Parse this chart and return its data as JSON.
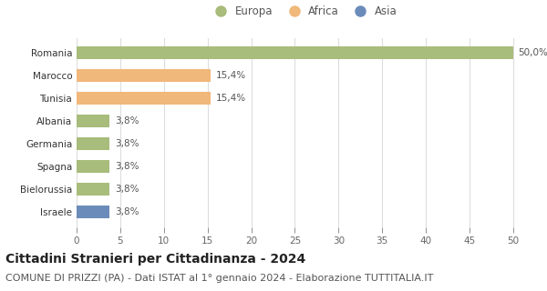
{
  "categories": [
    "Israele",
    "Bielorussia",
    "Spagna",
    "Germania",
    "Albania",
    "Tunisia",
    "Marocco",
    "Romania"
  ],
  "values": [
    3.8,
    3.8,
    3.8,
    3.8,
    3.8,
    15.4,
    15.4,
    50.0
  ],
  "labels": [
    "3,8%",
    "3,8%",
    "3,8%",
    "3,8%",
    "3,8%",
    "15,4%",
    "15,4%",
    "50,0%"
  ],
  "colors": [
    "#6b8cba",
    "#a8bc7b",
    "#a8bc7b",
    "#a8bc7b",
    "#a8bc7b",
    "#f0b87a",
    "#f0b87a",
    "#a8bc7b"
  ],
  "legend_labels": [
    "Europa",
    "Africa",
    "Asia"
  ],
  "legend_colors": [
    "#a8bc7b",
    "#f0b87a",
    "#6b8cba"
  ],
  "xlim": [
    0,
    52
  ],
  "xticks": [
    0,
    5,
    10,
    15,
    20,
    25,
    30,
    35,
    40,
    45,
    50
  ],
  "title": "Cittadini Stranieri per Cittadinanza - 2024",
  "subtitle": "COMUNE DI PRIZZI (PA) - Dati ISTAT al 1° gennaio 2024 - Elaborazione TUTTITALIA.IT",
  "title_fontsize": 10,
  "subtitle_fontsize": 8,
  "label_fontsize": 7.5,
  "tick_fontsize": 7.5,
  "legend_fontsize": 8.5,
  "bar_height": 0.55,
  "background_color": "#ffffff",
  "grid_color": "#dddddd"
}
